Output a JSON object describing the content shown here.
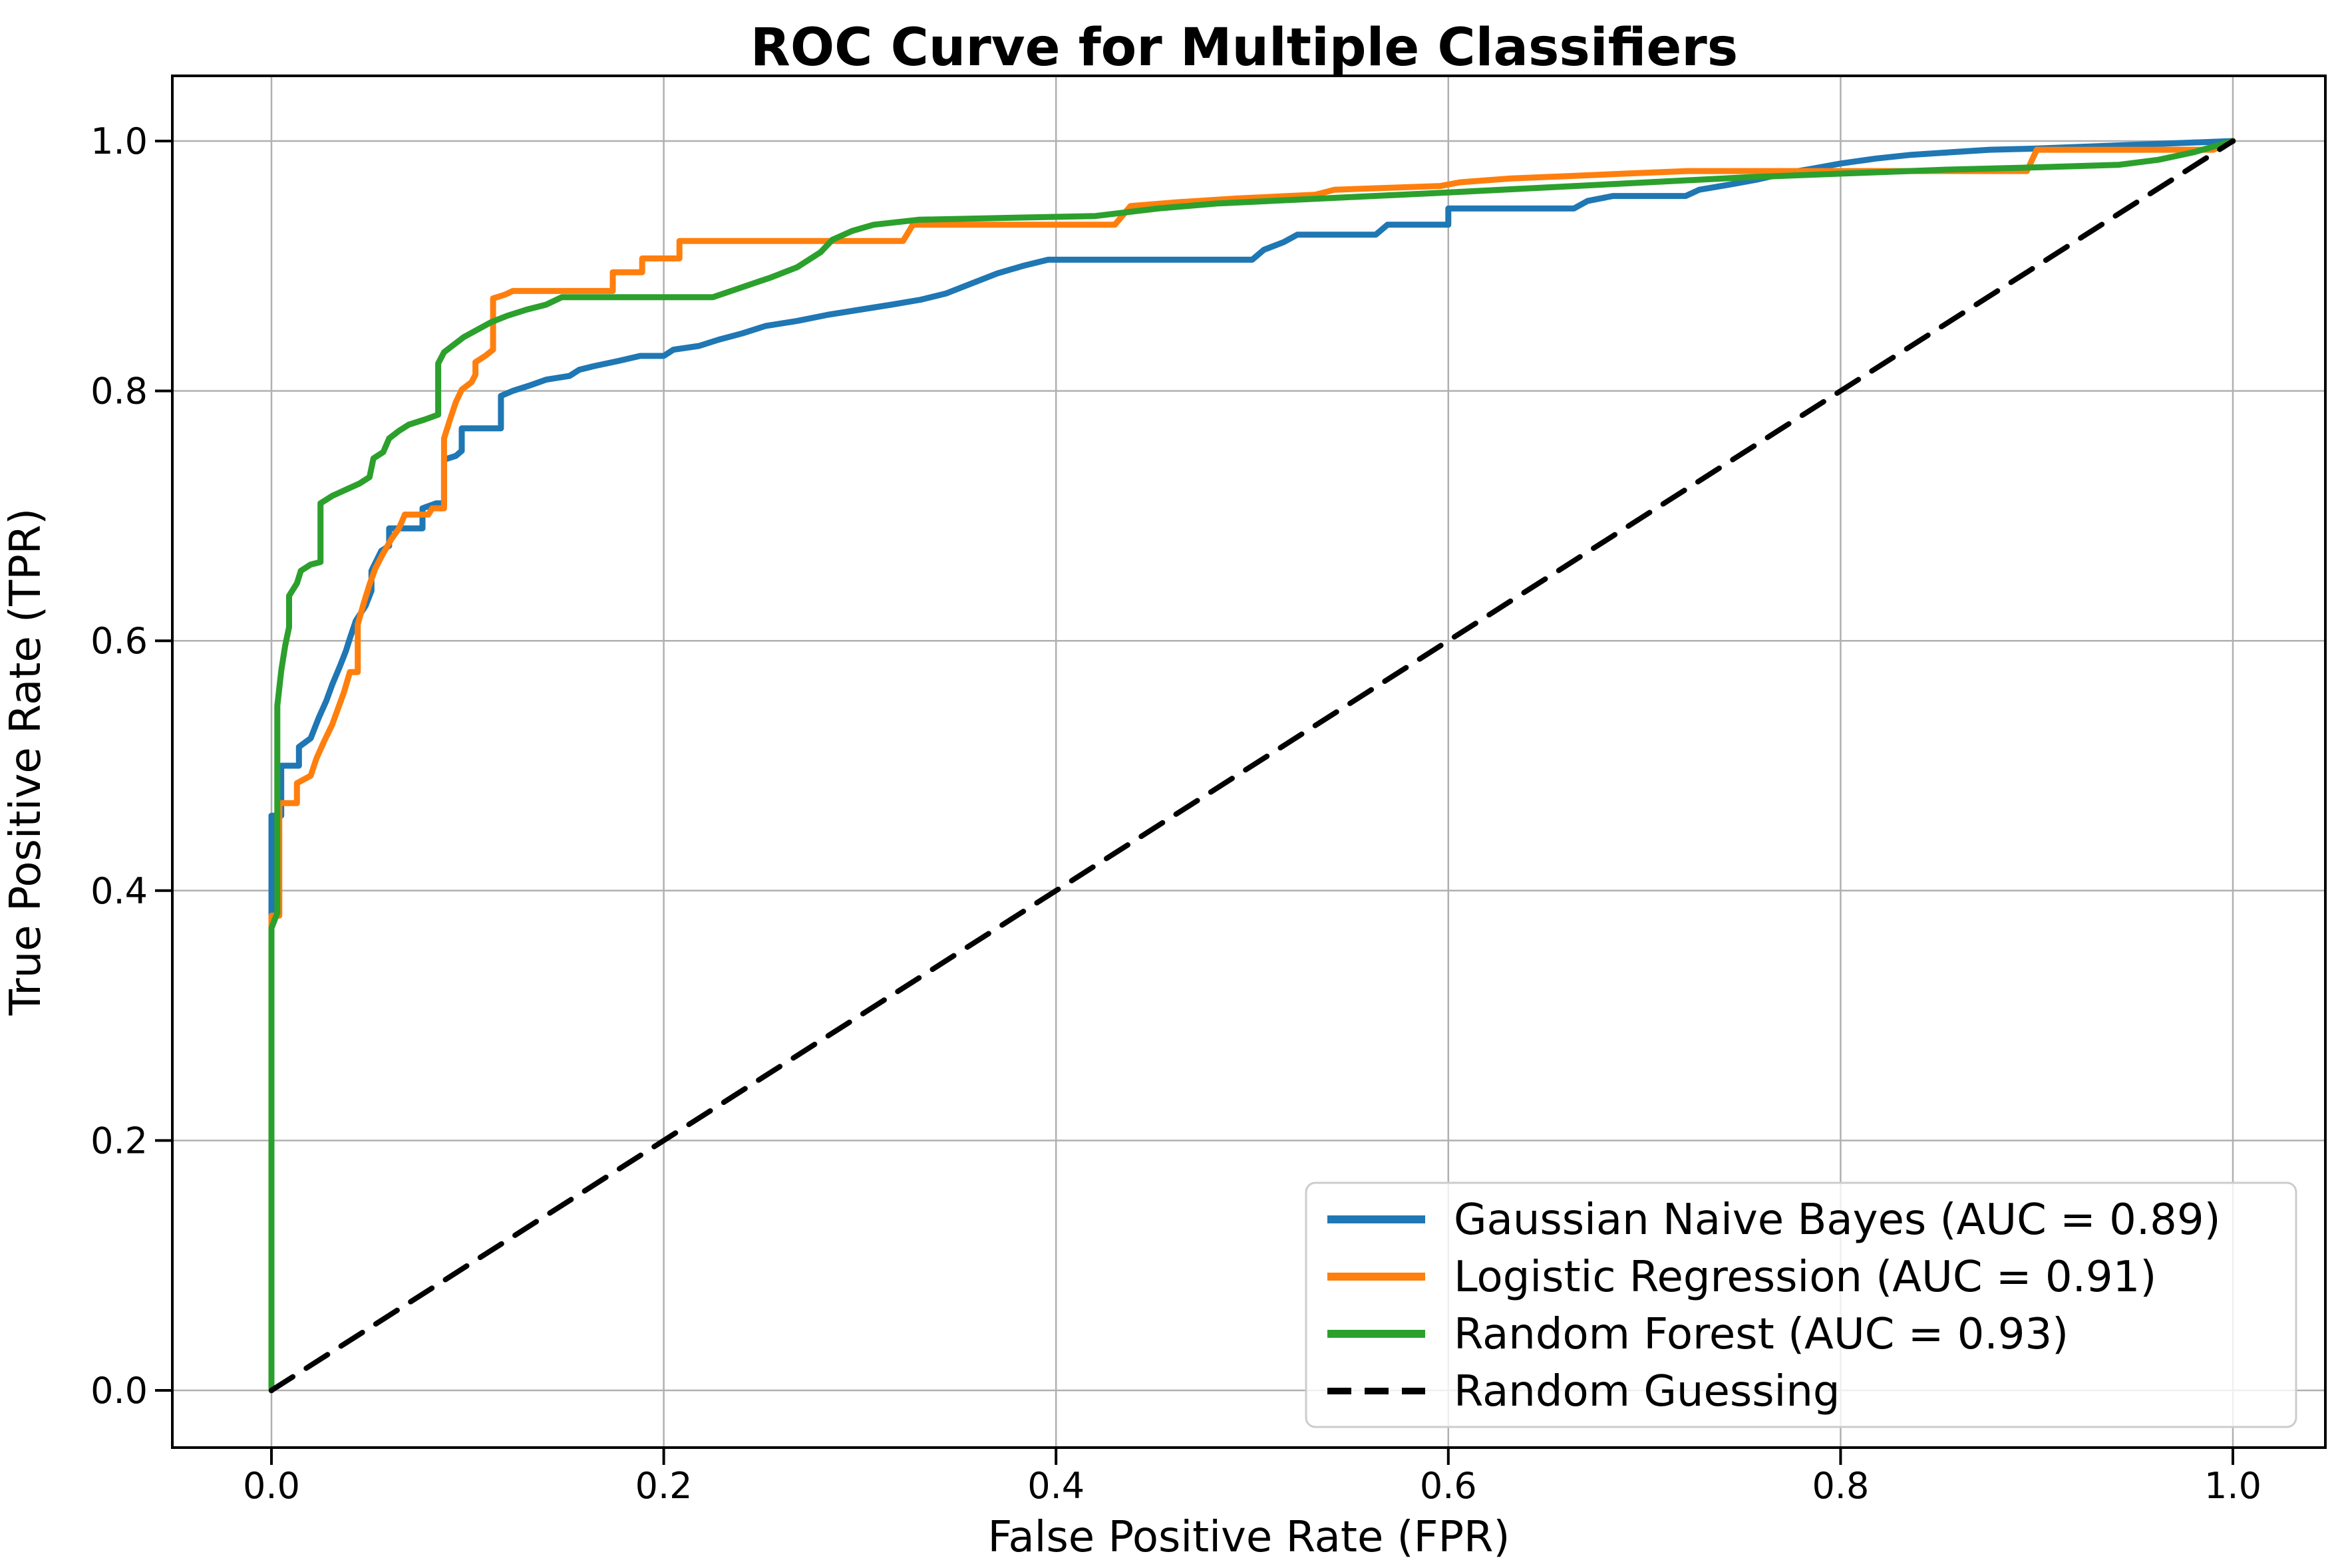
{
  "chart_data": {
    "type": "line",
    "title": "ROC Curve for Multiple Classifiers",
    "xlabel": "False Positive Rate (FPR)",
    "ylabel": "True Positive Rate (TPR)",
    "xlim": [
      -0.05,
      1.05
    ],
    "ylim": [
      -0.05,
      1.05
    ],
    "x_ticks": [
      0.0,
      0.2,
      0.4,
      0.6,
      0.8,
      1.0
    ],
    "y_ticks": [
      0.0,
      0.2,
      0.4,
      0.6,
      0.8,
      1.0
    ],
    "x_tick_labels": [
      "0.0",
      "0.2",
      "0.4",
      "0.6",
      "0.8",
      "1.0"
    ],
    "y_tick_labels": [
      "0.0",
      "0.2",
      "0.4",
      "0.6",
      "0.8",
      "1.0"
    ],
    "grid": true,
    "grid_color": "#b0b0b0",
    "background_color": "#ffffff",
    "text_color": "#000000",
    "legend_position": "lower right",
    "legend_border_color": "#cccccc",
    "series": [
      {
        "id": "gaussian-naive-bayes",
        "name": "Gaussian Naive Bayes (AUC = 0.89)",
        "auc": 0.89,
        "color": "#1f77b4",
        "linestyle": "solid",
        "points": [
          [
            0.0,
            0.0
          ],
          [
            0.0,
            0.46
          ],
          [
            0.005,
            0.46
          ],
          [
            0.005,
            0.5
          ],
          [
            0.014,
            0.5
          ],
          [
            0.014,
            0.515
          ],
          [
            0.02,
            0.522
          ],
          [
            0.024,
            0.538
          ],
          [
            0.028,
            0.552
          ],
          [
            0.031,
            0.565
          ],
          [
            0.035,
            0.58
          ],
          [
            0.038,
            0.592
          ],
          [
            0.04,
            0.602
          ],
          [
            0.043,
            0.616
          ],
          [
            0.048,
            0.628
          ],
          [
            0.051,
            0.64
          ],
          [
            0.051,
            0.656
          ],
          [
            0.056,
            0.672
          ],
          [
            0.06,
            0.676
          ],
          [
            0.06,
            0.69
          ],
          [
            0.077,
            0.69
          ],
          [
            0.077,
            0.706
          ],
          [
            0.084,
            0.71
          ],
          [
            0.088,
            0.71
          ],
          [
            0.088,
            0.745
          ],
          [
            0.094,
            0.748
          ],
          [
            0.097,
            0.752
          ],
          [
            0.097,
            0.77
          ],
          [
            0.117,
            0.77
          ],
          [
            0.117,
            0.796
          ],
          [
            0.123,
            0.8
          ],
          [
            0.131,
            0.804
          ],
          [
            0.14,
            0.809
          ],
          [
            0.152,
            0.812
          ],
          [
            0.157,
            0.817
          ],
          [
            0.165,
            0.82
          ],
          [
            0.177,
            0.824
          ],
          [
            0.188,
            0.828
          ],
          [
            0.2,
            0.828
          ],
          [
            0.205,
            0.833
          ],
          [
            0.218,
            0.836
          ],
          [
            0.228,
            0.841
          ],
          [
            0.24,
            0.846
          ],
          [
            0.252,
            0.852
          ],
          [
            0.268,
            0.856
          ],
          [
            0.284,
            0.861
          ],
          [
            0.3,
            0.865
          ],
          [
            0.316,
            0.869
          ],
          [
            0.331,
            0.873
          ],
          [
            0.344,
            0.878
          ],
          [
            0.357,
            0.886
          ],
          [
            0.37,
            0.894
          ],
          [
            0.383,
            0.9
          ],
          [
            0.396,
            0.905
          ],
          [
            0.5,
            0.905
          ],
          [
            0.506,
            0.913
          ],
          [
            0.516,
            0.919
          ],
          [
            0.523,
            0.925
          ],
          [
            0.563,
            0.925
          ],
          [
            0.569,
            0.933
          ],
          [
            0.6,
            0.933
          ],
          [
            0.6,
            0.946
          ],
          [
            0.664,
            0.946
          ],
          [
            0.671,
            0.952
          ],
          [
            0.684,
            0.956
          ],
          [
            0.721,
            0.956
          ],
          [
            0.728,
            0.961
          ],
          [
            0.743,
            0.965
          ],
          [
            0.757,
            0.969
          ],
          [
            0.771,
            0.974
          ],
          [
            0.786,
            0.978
          ],
          [
            0.8,
            0.982
          ],
          [
            0.818,
            0.986
          ],
          [
            0.836,
            0.989
          ],
          [
            0.856,
            0.991
          ],
          [
            0.876,
            0.993
          ],
          [
            0.9,
            0.994
          ],
          [
            1.0,
            1.0
          ]
        ]
      },
      {
        "id": "logistic-regression",
        "name": "Logistic Regression (AUC = 0.91)",
        "auc": 0.91,
        "color": "#ff7f0e",
        "linestyle": "solid",
        "points": [
          [
            0.0,
            0.0
          ],
          [
            0.0,
            0.38
          ],
          [
            0.004,
            0.38
          ],
          [
            0.004,
            0.47
          ],
          [
            0.013,
            0.47
          ],
          [
            0.013,
            0.486
          ],
          [
            0.02,
            0.492
          ],
          [
            0.023,
            0.506
          ],
          [
            0.027,
            0.52
          ],
          [
            0.031,
            0.533
          ],
          [
            0.034,
            0.546
          ],
          [
            0.037,
            0.559
          ],
          [
            0.04,
            0.575
          ],
          [
            0.044,
            0.575
          ],
          [
            0.044,
            0.613
          ],
          [
            0.047,
            0.63
          ],
          [
            0.05,
            0.645
          ],
          [
            0.053,
            0.658
          ],
          [
            0.057,
            0.67
          ],
          [
            0.061,
            0.681
          ],
          [
            0.065,
            0.69
          ],
          [
            0.068,
            0.701
          ],
          [
            0.08,
            0.701
          ],
          [
            0.082,
            0.706
          ],
          [
            0.088,
            0.706
          ],
          [
            0.088,
            0.762
          ],
          [
            0.091,
            0.777
          ],
          [
            0.094,
            0.791
          ],
          [
            0.097,
            0.801
          ],
          [
            0.102,
            0.807
          ],
          [
            0.104,
            0.813
          ],
          [
            0.104,
            0.823
          ],
          [
            0.109,
            0.828
          ],
          [
            0.113,
            0.833
          ],
          [
            0.113,
            0.874
          ],
          [
            0.119,
            0.877
          ],
          [
            0.123,
            0.88
          ],
          [
            0.174,
            0.88
          ],
          [
            0.174,
            0.895
          ],
          [
            0.189,
            0.895
          ],
          [
            0.189,
            0.906
          ],
          [
            0.208,
            0.906
          ],
          [
            0.208,
            0.92
          ],
          [
            0.322,
            0.92
          ],
          [
            0.327,
            0.933
          ],
          [
            0.43,
            0.933
          ],
          [
            0.438,
            0.948
          ],
          [
            0.462,
            0.951
          ],
          [
            0.492,
            0.954
          ],
          [
            0.532,
            0.957
          ],
          [
            0.542,
            0.961
          ],
          [
            0.596,
            0.964
          ],
          [
            0.606,
            0.967
          ],
          [
            0.632,
            0.97
          ],
          [
            0.662,
            0.972
          ],
          [
            0.692,
            0.974
          ],
          [
            0.722,
            0.976
          ],
          [
            0.895,
            0.976
          ],
          [
            0.9,
            0.993
          ],
          [
            0.99,
            0.993
          ],
          [
            1.0,
            1.0
          ]
        ]
      },
      {
        "id": "random-forest",
        "name": "Random Forest (AUC = 0.93)",
        "auc": 0.93,
        "color": "#2ca02c",
        "linestyle": "solid",
        "points": [
          [
            0.0,
            0.0
          ],
          [
            0.0,
            0.37
          ],
          [
            0.003,
            0.382
          ],
          [
            0.003,
            0.548
          ],
          [
            0.005,
            0.576
          ],
          [
            0.007,
            0.596
          ],
          [
            0.009,
            0.611
          ],
          [
            0.009,
            0.636
          ],
          [
            0.013,
            0.646
          ],
          [
            0.015,
            0.656
          ],
          [
            0.02,
            0.661
          ],
          [
            0.025,
            0.663
          ],
          [
            0.025,
            0.71
          ],
          [
            0.031,
            0.716
          ],
          [
            0.038,
            0.721
          ],
          [
            0.045,
            0.726
          ],
          [
            0.05,
            0.731
          ],
          [
            0.052,
            0.746
          ],
          [
            0.057,
            0.751
          ],
          [
            0.06,
            0.762
          ],
          [
            0.065,
            0.768
          ],
          [
            0.07,
            0.773
          ],
          [
            0.078,
            0.777
          ],
          [
            0.085,
            0.781
          ],
          [
            0.085,
            0.822
          ],
          [
            0.088,
            0.831
          ],
          [
            0.093,
            0.837
          ],
          [
            0.098,
            0.843
          ],
          [
            0.105,
            0.849
          ],
          [
            0.112,
            0.855
          ],
          [
            0.12,
            0.86
          ],
          [
            0.13,
            0.865
          ],
          [
            0.14,
            0.869
          ],
          [
            0.148,
            0.875
          ],
          [
            0.225,
            0.875
          ],
          [
            0.24,
            0.883
          ],
          [
            0.255,
            0.891
          ],
          [
            0.268,
            0.899
          ],
          [
            0.28,
            0.911
          ],
          [
            0.286,
            0.921
          ],
          [
            0.296,
            0.928
          ],
          [
            0.307,
            0.933
          ],
          [
            0.33,
            0.937
          ],
          [
            0.42,
            0.94
          ],
          [
            0.452,
            0.946
          ],
          [
            0.482,
            0.95
          ],
          [
            0.522,
            0.953
          ],
          [
            0.562,
            0.956
          ],
          [
            0.602,
            0.959
          ],
          [
            0.652,
            0.963
          ],
          [
            0.702,
            0.967
          ],
          [
            0.752,
            0.971
          ],
          [
            0.802,
            0.974
          ],
          [
            0.852,
            0.977
          ],
          [
            0.902,
            0.979
          ],
          [
            0.942,
            0.981
          ],
          [
            0.962,
            0.985
          ],
          [
            0.98,
            0.991
          ],
          [
            1.0,
            1.0
          ]
        ]
      },
      {
        "id": "random-guessing",
        "name": "Random Guessing",
        "color": "#000000",
        "linestyle": "dashed",
        "points": [
          [
            0.0,
            0.0
          ],
          [
            1.0,
            1.0
          ]
        ]
      }
    ]
  }
}
